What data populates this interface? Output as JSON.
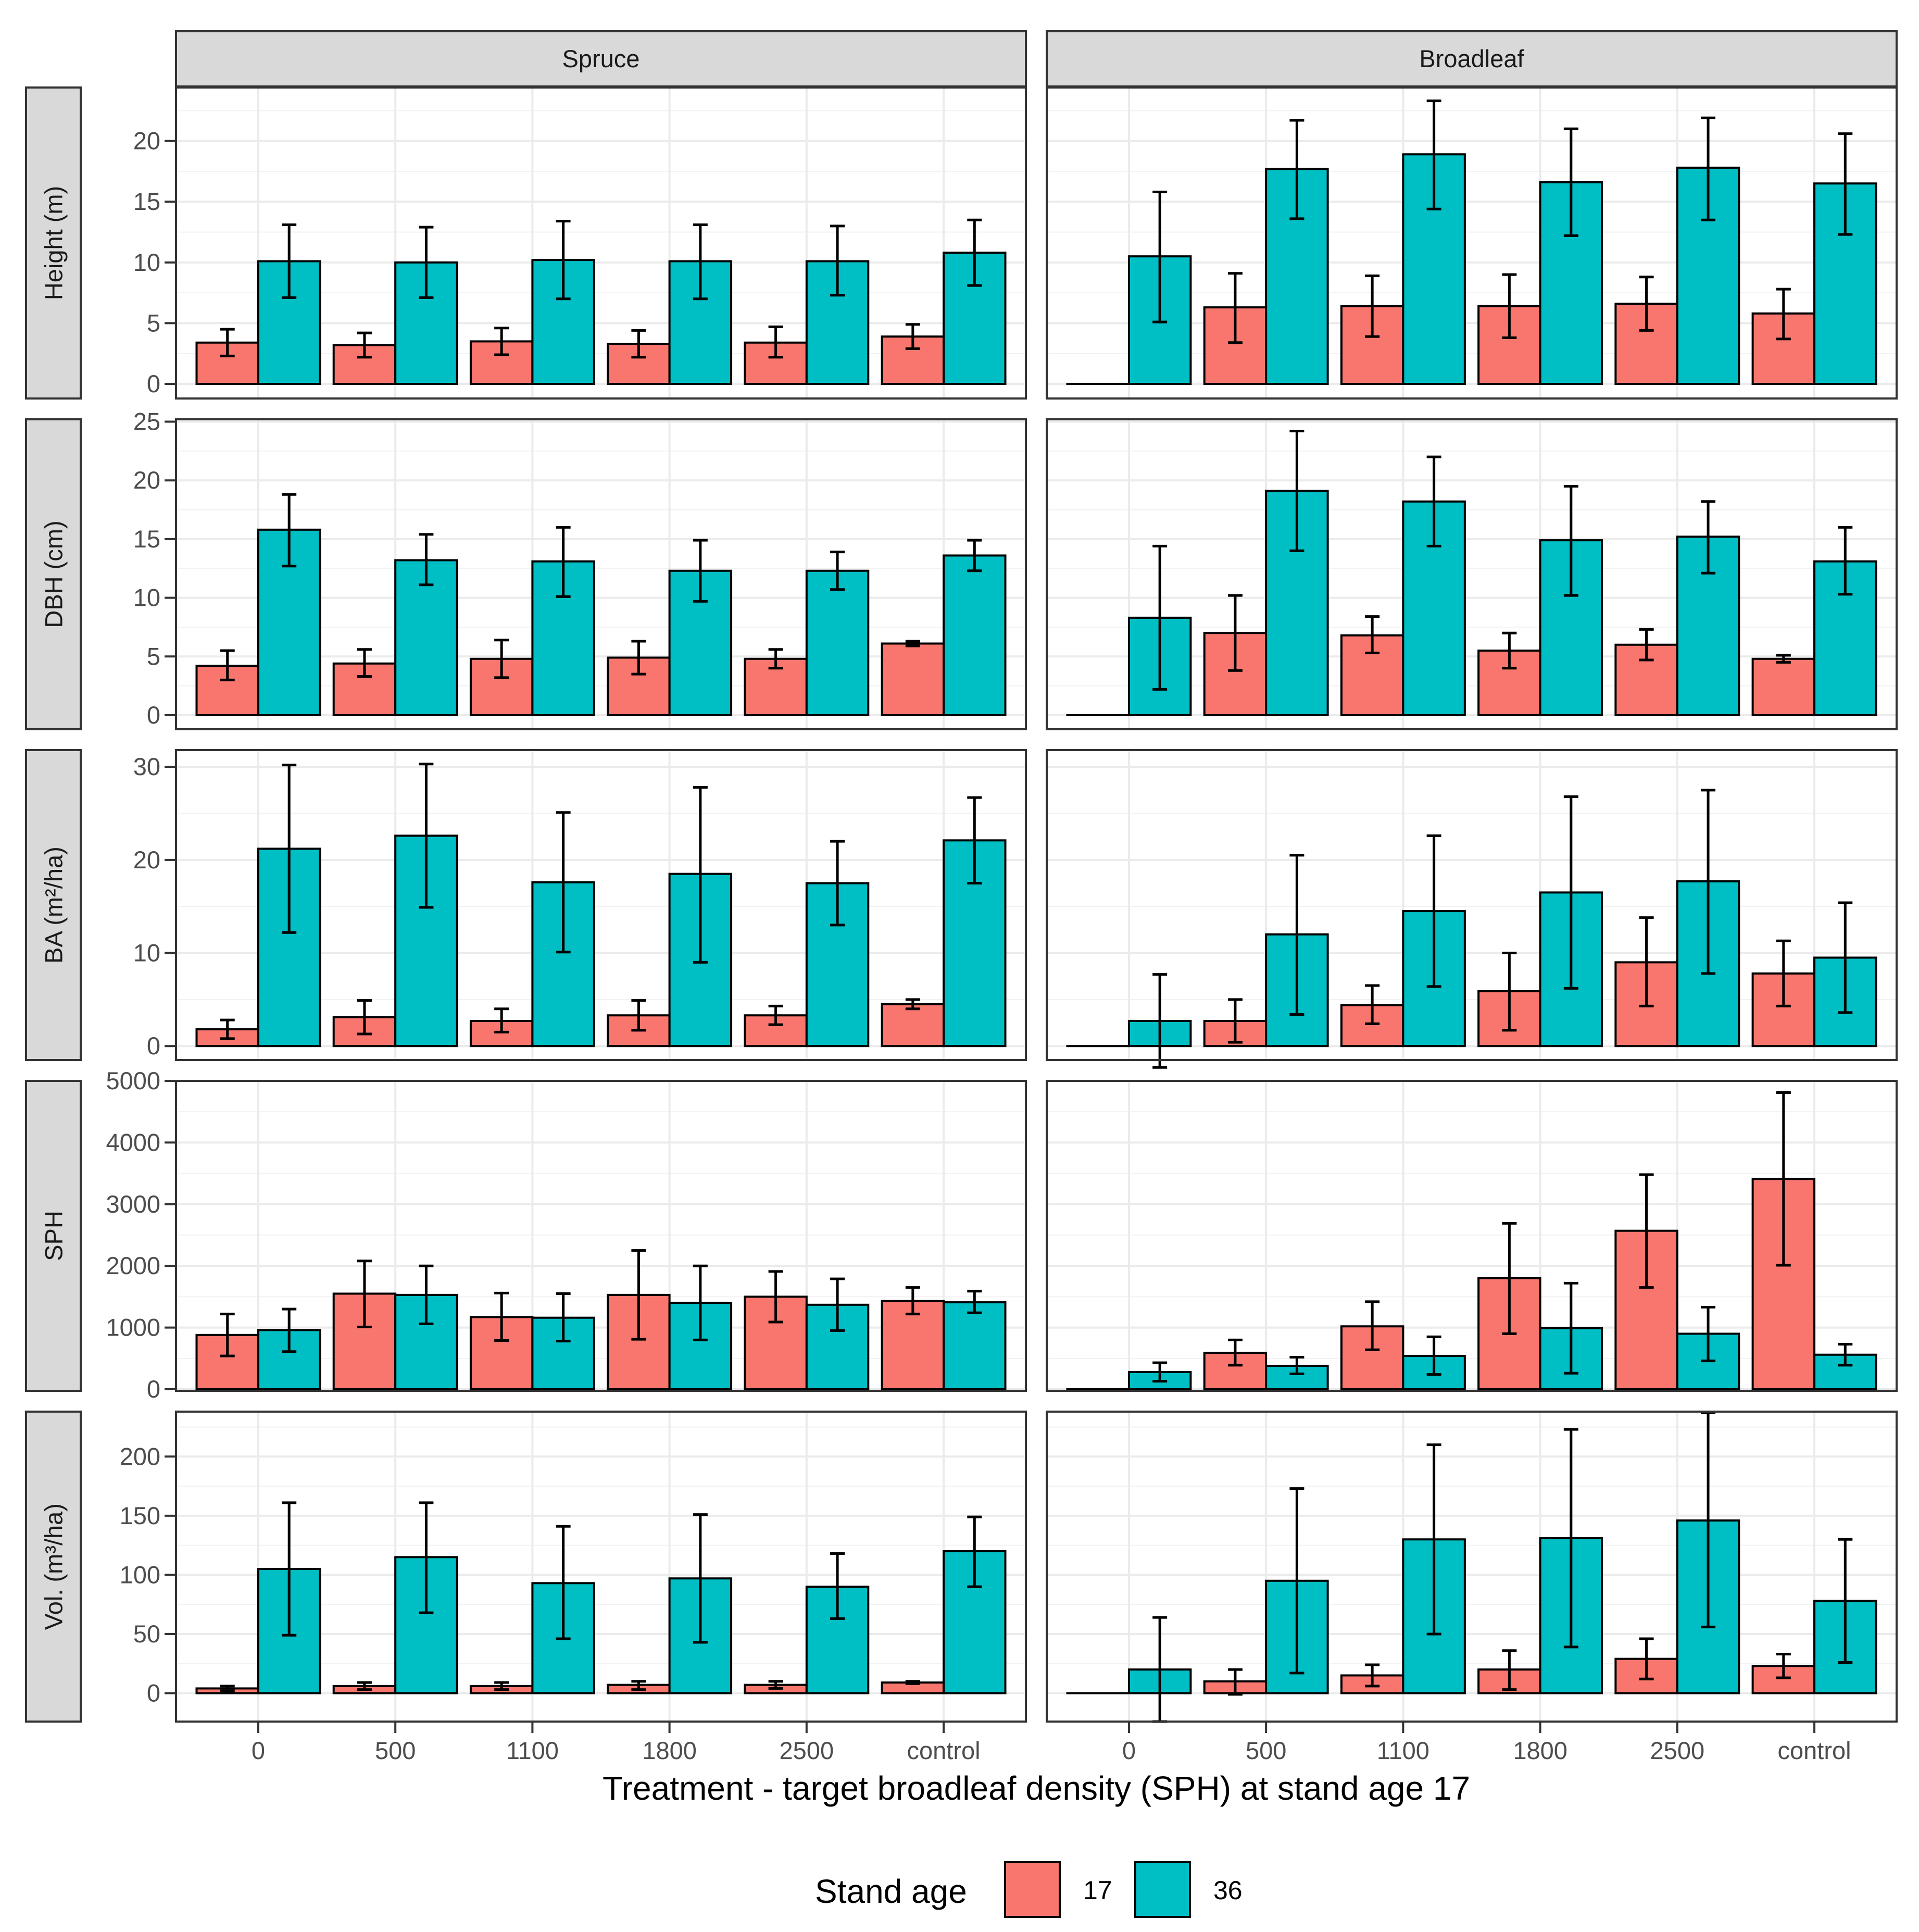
{
  "colors": {
    "age17": "#F8766D",
    "age36": "#00BFC4",
    "strip_bg": "#D9D9D9",
    "grid_major": "#EBEBEB",
    "panel_border": "#333333"
  },
  "chart_data": {
    "type": "bar",
    "facets": {
      "columns": [
        "Spruce",
        "Broadleaf"
      ],
      "rows": [
        "Height (m)",
        "DBH (cm)",
        "BA (m²/ha)",
        "SPH",
        "Vol. (m³/ha)"
      ]
    },
    "categories": [
      "0",
      "500",
      "1100",
      "1800",
      "2500",
      "control"
    ],
    "xlabel": "Treatment - target broadleaf density (SPH) at stand age 17",
    "legend": {
      "title": "Stand age",
      "entries": [
        "17",
        "36"
      ],
      "position": "bottom"
    },
    "series_names": [
      "17",
      "36"
    ],
    "rows": [
      {
        "ylabel": "Height (m)",
        "ylim": [
          -1.2,
          24.4
        ],
        "ticks": [
          0,
          5,
          10,
          15,
          20
        ],
        "panels": [
          {
            "column": "Spruce",
            "series": [
              {
                "name": "17",
                "values": [
                  3.4,
                  3.2,
                  3.5,
                  3.3,
                  3.4,
                  3.9
                ],
                "err_low": [
                  2.3,
                  2.2,
                  2.4,
                  2.2,
                  2.2,
                  2.9
                ],
                "err_high": [
                  4.5,
                  4.2,
                  4.6,
                  4.4,
                  4.7,
                  4.9
                ]
              },
              {
                "name": "36",
                "values": [
                  10.1,
                  10.0,
                  10.2,
                  10.1,
                  10.1,
                  10.8
                ],
                "err_low": [
                  7.1,
                  7.1,
                  7.0,
                  7.0,
                  7.3,
                  8.1
                ],
                "err_high": [
                  13.1,
                  12.9,
                  13.4,
                  13.1,
                  13.0,
                  13.5
                ]
              }
            ]
          },
          {
            "column": "Broadleaf",
            "series": [
              {
                "name": "17",
                "values": [
                  0,
                  6.3,
                  6.4,
                  6.4,
                  6.6,
                  5.8
                ],
                "err_low": [
                  0,
                  3.4,
                  3.9,
                  3.8,
                  4.4,
                  3.7
                ],
                "err_high": [
                  0,
                  9.1,
                  8.9,
                  9.0,
                  8.8,
                  7.8
                ]
              },
              {
                "name": "36",
                "values": [
                  10.5,
                  17.7,
                  18.9,
                  16.6,
                  17.8,
                  16.5
                ],
                "err_low": [
                  5.1,
                  13.6,
                  14.4,
                  12.2,
                  13.5,
                  12.3
                ],
                "err_high": [
                  15.8,
                  21.7,
                  23.3,
                  21.0,
                  21.9,
                  20.6
                ]
              }
            ]
          }
        ]
      },
      {
        "ylabel": "DBH (cm)",
        "ylim": [
          -1.2,
          25.2
        ],
        "ticks": [
          0,
          5,
          10,
          15,
          20,
          25
        ],
        "panels": [
          {
            "column": "Spruce",
            "series": [
              {
                "name": "17",
                "values": [
                  4.2,
                  4.4,
                  4.8,
                  4.9,
                  4.8,
                  6.1
                ],
                "err_low": [
                  3.0,
                  3.3,
                  3.2,
                  3.5,
                  4.0,
                  5.9
                ],
                "err_high": [
                  5.5,
                  5.6,
                  6.4,
                  6.3,
                  5.6,
                  6.3
                ]
              },
              {
                "name": "36",
                "values": [
                  15.8,
                  13.2,
                  13.1,
                  12.3,
                  12.3,
                  13.6
                ],
                "err_low": [
                  12.7,
                  11.1,
                  10.1,
                  9.7,
                  10.7,
                  12.3
                ],
                "err_high": [
                  18.8,
                  15.4,
                  16.0,
                  14.9,
                  13.9,
                  14.9
                ]
              }
            ]
          },
          {
            "column": "Broadleaf",
            "series": [
              {
                "name": "17",
                "values": [
                  0,
                  7.0,
                  6.8,
                  5.5,
                  6.0,
                  4.8
                ],
                "err_low": [
                  0,
                  3.8,
                  5.3,
                  4.0,
                  4.7,
                  4.5
                ],
                "err_high": [
                  0,
                  10.2,
                  8.4,
                  7.0,
                  7.3,
                  5.1
                ]
              },
              {
                "name": "36",
                "values": [
                  8.3,
                  19.1,
                  18.2,
                  14.9,
                  15.2,
                  13.1
                ],
                "err_low": [
                  2.2,
                  14.0,
                  14.4,
                  10.2,
                  12.1,
                  10.3
                ],
                "err_high": [
                  14.4,
                  24.2,
                  22.0,
                  19.5,
                  18.2,
                  16.0
                ]
              }
            ]
          }
        ]
      },
      {
        "ylabel": "BA (m²/ha)",
        "ylim": [
          -1.5,
          31.8
        ],
        "ticks": [
          0,
          10,
          20,
          30
        ],
        "panels": [
          {
            "column": "Spruce",
            "series": [
              {
                "name": "17",
                "values": [
                  1.8,
                  3.1,
                  2.7,
                  3.3,
                  3.3,
                  4.5
                ],
                "err_low": [
                  0.8,
                  1.3,
                  1.5,
                  1.7,
                  2.3,
                  4.0
                ],
                "err_high": [
                  2.8,
                  4.9,
                  4.0,
                  4.9,
                  4.3,
                  5.0
                ]
              },
              {
                "name": "36",
                "values": [
                  21.2,
                  22.6,
                  17.6,
                  18.5,
                  17.5,
                  22.1
                ],
                "err_low": [
                  12.2,
                  14.9,
                  10.1,
                  9.0,
                  13.0,
                  17.5
                ],
                "err_high": [
                  30.2,
                  30.3,
                  25.1,
                  27.8,
                  22.0,
                  26.7
                ]
              }
            ]
          },
          {
            "column": "Broadleaf",
            "series": [
              {
                "name": "17",
                "values": [
                  0,
                  2.7,
                  4.4,
                  5.9,
                  9.0,
                  7.8
                ],
                "err_low": [
                  0,
                  0.4,
                  2.4,
                  1.7,
                  4.3,
                  4.3
                ],
                "err_high": [
                  0,
                  5.0,
                  6.5,
                  10.0,
                  13.8,
                  11.3
                ]
              },
              {
                "name": "36",
                "values": [
                  2.7,
                  12.0,
                  14.5,
                  16.5,
                  17.7,
                  9.5
                ],
                "err_low": [
                  -2.3,
                  3.4,
                  6.4,
                  6.2,
                  7.8,
                  3.6
                ],
                "err_high": [
                  7.7,
                  20.5,
                  22.6,
                  26.8,
                  27.5,
                  15.4
                ]
              }
            ]
          }
        ]
      },
      {
        "ylabel": "SPH",
        "ylim": [
          -25,
          5000
        ],
        "ticks": [
          0,
          1000,
          2000,
          3000,
          4000,
          5000
        ],
        "panels": [
          {
            "column": "Spruce",
            "series": [
              {
                "name": "17",
                "values": [
                  880,
                  1550,
                  1170,
                  1530,
                  1500,
                  1430
                ],
                "err_low": [
                  540,
                  1010,
                  790,
                  810,
                  1090,
                  1220
                ],
                "err_high": [
                  1220,
                  2080,
                  1560,
                  2250,
                  1910,
                  1650
                ]
              },
              {
                "name": "36",
                "values": [
                  960,
                  1530,
                  1160,
                  1400,
                  1370,
                  1410
                ],
                "err_low": [
                  610,
                  1060,
                  780,
                  800,
                  950,
                  1240
                ],
                "err_high": [
                  1300,
                  2000,
                  1550,
                  2000,
                  1790,
                  1590
                ]
              }
            ]
          },
          {
            "column": "Broadleaf",
            "series": [
              {
                "name": "17",
                "values": [
                  0,
                  590,
                  1020,
                  1800,
                  2570,
                  3410
                ],
                "err_low": [
                  0,
                  390,
                  640,
                  900,
                  1650,
                  2010
                ],
                "err_high": [
                  0,
                  800,
                  1420,
                  2690,
                  3480,
                  4810
                ]
              },
              {
                "name": "36",
                "values": [
                  280,
                  380,
                  540,
                  990,
                  900,
                  560
                ],
                "err_low": [
                  130,
                  250,
                  240,
                  260,
                  460,
                  390
                ],
                "err_high": [
                  430,
                  520,
                  850,
                  1720,
                  1330,
                  730
                ]
              }
            ]
          }
        ]
      },
      {
        "ylabel": "Vol. (m³/ha)",
        "ylim": [
          -24,
          238
        ],
        "ticks": [
          0,
          50,
          100,
          150,
          200
        ],
        "panels": [
          {
            "column": "Spruce",
            "series": [
              {
                "name": "17",
                "values": [
                  4,
                  6,
                  6,
                  7,
                  7,
                  9
                ],
                "err_low": [
                  2,
                  3,
                  3,
                  3,
                  4,
                  8
                ],
                "err_high": [
                  6,
                  9,
                  9,
                  10,
                  10,
                  10
                ]
              },
              {
                "name": "36",
                "values": [
                  105,
                  115,
                  93,
                  97,
                  90,
                  120
                ],
                "err_low": [
                  49,
                  68,
                  46,
                  43,
                  63,
                  90
                ],
                "err_high": [
                  161,
                  161,
                  141,
                  151,
                  118,
                  149
                ]
              }
            ]
          },
          {
            "column": "Broadleaf",
            "series": [
              {
                "name": "17",
                "values": [
                  0,
                  10,
                  15,
                  20,
                  29,
                  23
                ],
                "err_low": [
                  0,
                  -1,
                  6,
                  3,
                  12,
                  13
                ],
                "err_high": [
                  0,
                  20,
                  24,
                  36,
                  46,
                  33
                ]
              },
              {
                "name": "36",
                "values": [
                  20,
                  95,
                  130,
                  131,
                  146,
                  78
                ],
                "err_low": [
                  -24,
                  17,
                  50,
                  39,
                  56,
                  26
                ],
                "err_high": [
                  64,
                  173,
                  210,
                  223,
                  237,
                  130
                ]
              }
            ]
          }
        ]
      }
    ]
  }
}
